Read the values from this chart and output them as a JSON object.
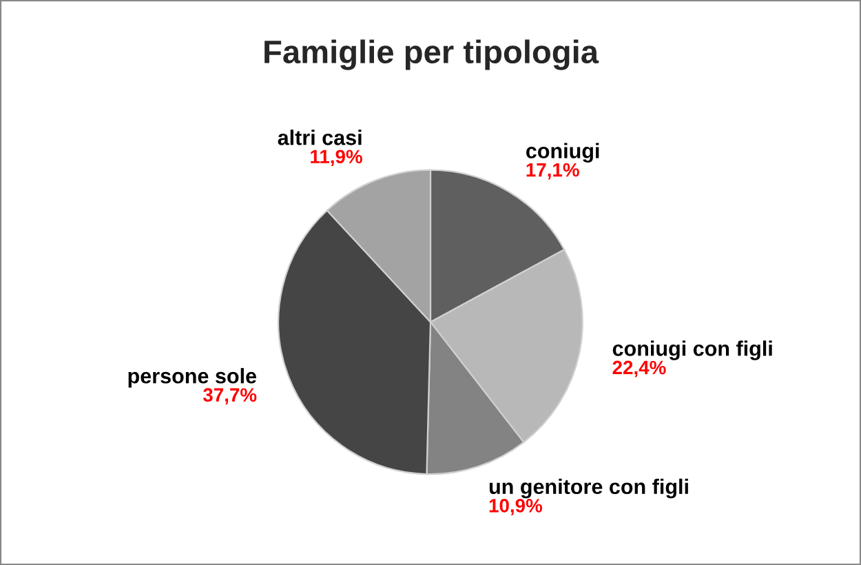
{
  "chart_data": {
    "type": "pie",
    "title": "Famiglie per tipologia",
    "categories": [
      "coniugi",
      "coniugi con figli",
      "un genitore con figli",
      "persone sole",
      "altri casi"
    ],
    "values": [
      17.1,
      22.4,
      10.9,
      37.7,
      11.9
    ],
    "value_labels": [
      "17,1%",
      "22,4%",
      "10,9%",
      "37,7%",
      "11,9%"
    ],
    "colors": [
      "#5f5f5f",
      "#b8b8b8",
      "#838383",
      "#454545",
      "#a3a3a3"
    ],
    "legend": false
  }
}
